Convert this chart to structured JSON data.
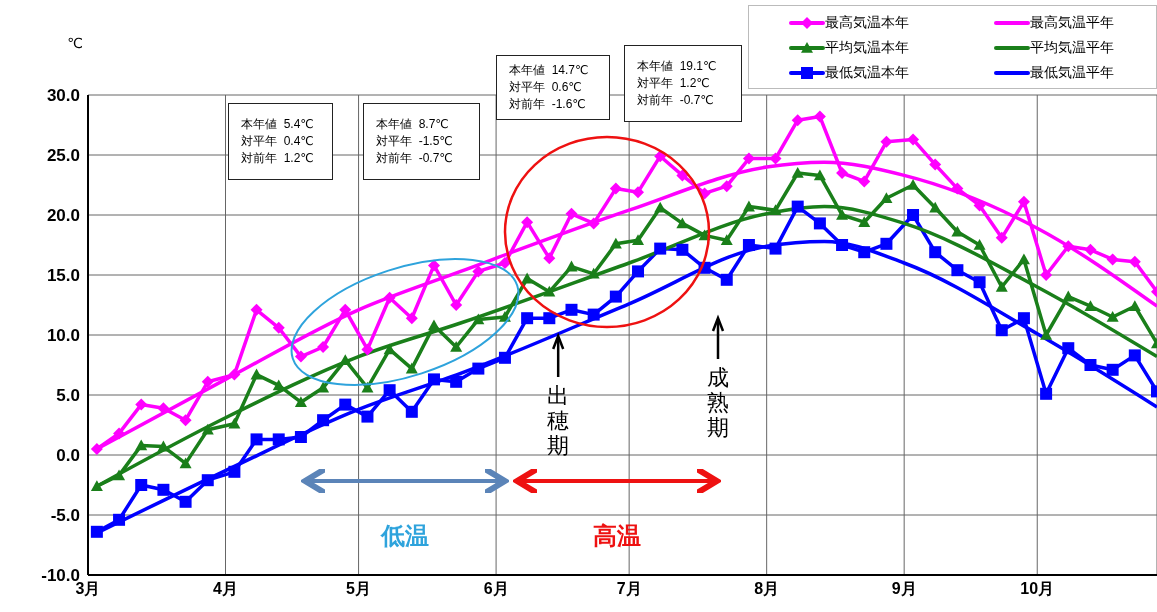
{
  "chart_data": {
    "type": "line",
    "ylabel": "℃",
    "x": [
      "--03-03",
      "--03-08",
      "--03-13",
      "--03-18",
      "--03-23",
      "--03-28",
      "--04-03",
      "--04-08",
      "--04-13",
      "--04-18",
      "--04-23",
      "--04-28",
      "--05-03",
      "--05-08",
      "--05-13",
      "--05-18",
      "--05-23",
      "--05-28",
      "--06-03",
      "--06-08",
      "--06-13",
      "--06-18",
      "--06-23",
      "--06-28",
      "--07-03",
      "--07-08",
      "--07-13",
      "--07-18",
      "--07-23",
      "--07-28",
      "--08-03",
      "--08-08",
      "--08-13",
      "--08-18",
      "--08-23",
      "--08-28",
      "--09-03",
      "--09-08",
      "--09-13",
      "--09-18",
      "--09-23",
      "--09-28",
      "--10-03",
      "--10-08",
      "--10-13",
      "--10-18",
      "--10-23",
      "--10-28"
    ],
    "series": [
      {
        "name": "最高気温本年",
        "color": "#ff00ff",
        "marker": "diamond",
        "values": [
          0.5,
          1.8,
          4.2,
          3.9,
          2.9,
          6.1,
          6.7,
          12.1,
          10.6,
          8.2,
          9.0,
          12.1,
          8.8,
          13.1,
          11.4,
          15.8,
          12.5,
          15.3,
          16.0,
          19.4,
          16.4,
          20.1,
          19.3,
          22.2,
          21.9,
          24.9,
          23.3,
          21.8,
          22.4,
          24.7,
          24.7,
          27.9,
          28.2,
          23.5,
          22.8,
          26.1,
          26.3,
          24.2,
          22.2,
          20.8,
          18.1,
          21.1,
          15.0,
          17.4,
          17.1,
          16.3,
          16.1,
          13.6
        ]
      },
      {
        "name": "平均気温本年",
        "color": "#1a7f1a",
        "marker": "triangle",
        "values": [
          -2.6,
          -1.7,
          0.8,
          0.7,
          -0.7,
          2.1,
          2.6,
          6.7,
          5.8,
          4.4,
          5.6,
          7.9,
          5.6,
          8.8,
          7.2,
          10.8,
          9.0,
          11.3,
          11.5,
          14.7,
          13.6,
          15.7,
          15.1,
          17.6,
          17.9,
          20.6,
          19.3,
          18.3,
          17.9,
          20.7,
          20.4,
          23.5,
          23.3,
          20.0,
          19.4,
          21.4,
          22.5,
          20.6,
          18.6,
          17.5,
          14.0,
          16.3,
          10.0,
          13.2,
          12.4,
          11.5,
          12.4,
          9.3
        ]
      },
      {
        "name": "最低気温本年",
        "color": "#0000ff",
        "marker": "square",
        "values": [
          -6.4,
          -5.4,
          -2.5,
          -2.9,
          -3.9,
          -2.1,
          -1.4,
          1.3,
          1.3,
          1.5,
          2.9,
          4.2,
          3.2,
          5.4,
          3.6,
          6.3,
          6.1,
          7.2,
          8.1,
          11.4,
          11.4,
          12.1,
          11.7,
          13.2,
          15.3,
          17.2,
          17.1,
          15.6,
          14.6,
          17.5,
          17.2,
          20.7,
          19.3,
          17.5,
          16.9,
          17.6,
          20.0,
          16.9,
          15.4,
          14.4,
          10.4,
          11.4,
          5.1,
          8.9,
          7.5,
          7.1,
          8.3,
          5.3
        ]
      },
      {
        "name": "最高気温平年",
        "color": "#ff00ff",
        "marker": "none",
        "x": [
          "--03-03",
          "--04-01",
          "--05-01",
          "--05-24",
          "--07-01",
          "--08-01",
          "--08-14",
          "--09-01",
          "--10-01",
          "--10-28"
        ],
        "values": [
          0.5,
          6.3,
          12.1,
          15.3,
          20.4,
          24.0,
          24.4,
          23.3,
          18.9,
          12.4
        ]
      },
      {
        "name": "平均気温平年",
        "color": "#1a7f1a",
        "marker": "none",
        "x": [
          "--03-03",
          "--04-01",
          "--05-01",
          "--05-24",
          "--07-01",
          "--08-01",
          "--08-14",
          "--09-01",
          "--10-01",
          "--10-28"
        ],
        "values": [
          -2.6,
          3.1,
          8.2,
          11.0,
          16.0,
          20.1,
          20.7,
          19.3,
          14.0,
          8.2
        ]
      },
      {
        "name": "最低気温平年",
        "color": "#0000ff",
        "marker": "none",
        "x": [
          "--03-03",
          "--04-01",
          "--05-01",
          "--05-24",
          "--07-01",
          "--08-01",
          "--08-14",
          "--09-01",
          "--10-01",
          "--10-28"
        ],
        "values": [
          -6.5,
          -1.3,
          3.8,
          6.8,
          12.6,
          17.4,
          17.8,
          16.0,
          10.1,
          4.0
        ]
      }
    ],
    "xlim": [
      "--03-01",
      "--10-28"
    ],
    "xticks": [
      {
        "value": "--03-01",
        "label": "3月"
      },
      {
        "value": "--04-01",
        "label": "4月"
      },
      {
        "value": "--05-01",
        "label": "5月"
      },
      {
        "value": "--06-01",
        "label": "6月"
      },
      {
        "value": "--07-01",
        "label": "7月"
      },
      {
        "value": "--08-01",
        "label": "8月"
      },
      {
        "value": "--09-01",
        "label": "9月"
      },
      {
        "value": "--10-01",
        "label": "10月"
      }
    ],
    "ylim": [
      -10,
      30
    ],
    "yticks": [
      {
        "value": -10,
        "label": "-10.0"
      },
      {
        "value": -5,
        "label": "-5.0"
      },
      {
        "value": 0,
        "label": "0.0"
      },
      {
        "value": 5,
        "label": "5.0"
      },
      {
        "value": 10,
        "label": "10.0"
      },
      {
        "value": 15,
        "label": "15.0"
      },
      {
        "value": 20,
        "label": "20.0"
      },
      {
        "value": 25,
        "label": "25.0"
      },
      {
        "value": 30,
        "label": "30.0"
      }
    ],
    "grid": true,
    "legend": "top right",
    "annotations": [
      "本年値  5.4℃\n対平年  0.4℃\n対前年  1.2℃",
      "本年値  8.7℃\n対平年  -1.5℃\n対前年  -0.7℃",
      "本年値  14.7℃\n対平年  0.6℃\n対前年  -1.6℃",
      "本年値  19.1℃\n対平年  1.2℃\n対前年  -0.7℃",
      "低温",
      "高温",
      {
        "text": "出穂期",
        "x": "--06-15",
        "y": 10.0
      },
      "成熟期"
    ]
  }
}
